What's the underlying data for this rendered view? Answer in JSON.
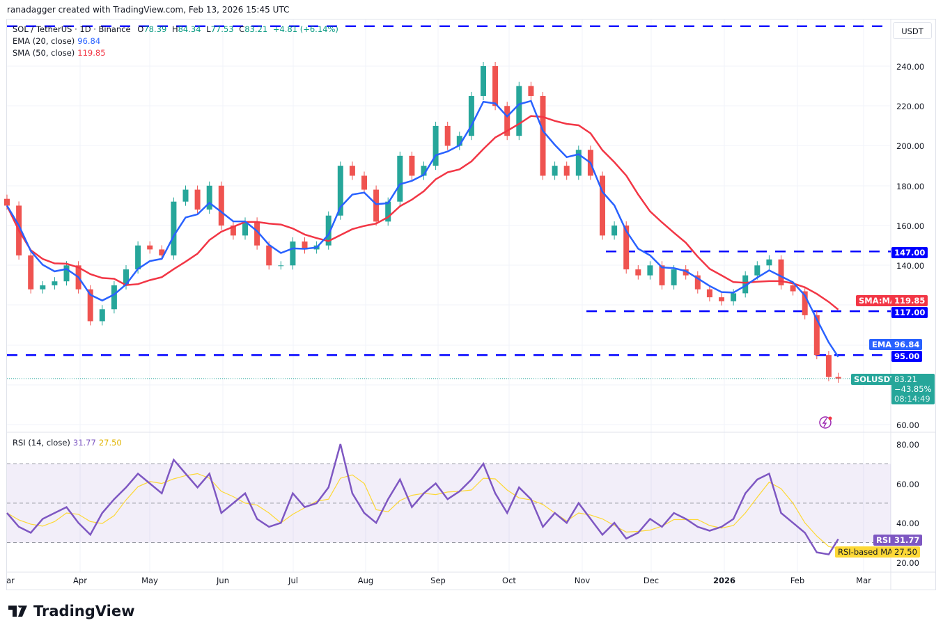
{
  "credit": "ranadagger created with TradingView.com, Feb 13, 2026 15:45 UTC",
  "legend": {
    "symbol": "SOL / TetherUS · 1D · Binance",
    "o_label": "O",
    "o": "78.39",
    "h_label": "H",
    "h": "84.34",
    "l_label": "L",
    "l": "77.53",
    "c_label": "C",
    "c": "83.21",
    "change": "+4.81 (+6.14%)",
    "ema_label": "EMA (20, close)",
    "ema_value": "96.84",
    "sma_label": "SMA (50, close)",
    "sma_value": "119.85",
    "rsi_label": "RSI (14, close)",
    "rsi_value": "31.77",
    "rsi_ma_value": "27.50"
  },
  "currency": "USDT",
  "price_axis": [
    "240.00",
    "220.00",
    "200.00",
    "180.00",
    "160.00",
    "140.00",
    "60.00"
  ],
  "rsi_axis": [
    "80.00",
    "60.00",
    "40.00",
    "20.00"
  ],
  "time_axis": [
    "Mar",
    "Apr",
    "May",
    "Jun",
    "Jul",
    "Aug",
    "Sep",
    "Oct",
    "Nov",
    "Dec",
    "2026",
    "Feb",
    "Mar"
  ],
  "badges": {
    "level_147": "147.00",
    "sma_tag": "SMA:MA",
    "sma_value": "119.85",
    "level_117": "117.00",
    "ema_tag": "EMA",
    "ema_value": "96.84",
    "level_95": "95.00",
    "symbol_tag": "SOLUSDT",
    "price": "83.21",
    "change_pct": "−43.85%",
    "countdown": "08:14:49",
    "rsi_tag": "RSI",
    "rsi_value": "31.77",
    "rsi_ma_tag": "RSI-based MA",
    "rsi_ma_value": "27.50"
  },
  "brand": "TradingView",
  "colors": {
    "up": "#26a69a",
    "down": "#ef5350",
    "ema": "#2962ff",
    "sma": "#f23645",
    "levels": "#0000ff",
    "rsi": "#7e57c2",
    "rsi_ma": "#fdd835",
    "rsi_band": "#7e57c2"
  },
  "chart_data": {
    "type": "candlestick",
    "symbol": "SOL / TetherUS",
    "timeframe": "1D",
    "ylim": [
      55,
      265
    ],
    "horizontal_levels": [
      260,
      147,
      117,
      95
    ],
    "dates": [
      "2025-03-01",
      "2025-03-06",
      "2025-03-11",
      "2025-03-16",
      "2025-03-21",
      "2025-03-26",
      "2025-03-31",
      "2025-04-05",
      "2025-04-10",
      "2025-04-15",
      "2025-04-20",
      "2025-04-25",
      "2025-04-30",
      "2025-05-05",
      "2025-05-10",
      "2025-05-15",
      "2025-05-20",
      "2025-05-25",
      "2025-05-30",
      "2025-06-04",
      "2025-06-09",
      "2025-06-14",
      "2025-06-19",
      "2025-06-24",
      "2025-06-29",
      "2025-07-04",
      "2025-07-09",
      "2025-07-14",
      "2025-07-19",
      "2025-07-24",
      "2025-07-29",
      "2025-08-03",
      "2025-08-08",
      "2025-08-13",
      "2025-08-18",
      "2025-08-23",
      "2025-08-28",
      "2025-09-02",
      "2025-09-07",
      "2025-09-12",
      "2025-09-17",
      "2025-09-22",
      "2025-09-27",
      "2025-10-02",
      "2025-10-07",
      "2025-10-12",
      "2025-10-17",
      "2025-10-22",
      "2025-10-27",
      "2025-11-01",
      "2025-11-06",
      "2025-11-11",
      "2025-11-16",
      "2025-11-21",
      "2025-11-26",
      "2025-12-01",
      "2025-12-06",
      "2025-12-11",
      "2025-12-16",
      "2025-12-21",
      "2025-12-26",
      "2025-12-31",
      "2026-01-05",
      "2026-01-10",
      "2026-01-15",
      "2026-01-20",
      "2026-01-25",
      "2026-01-30",
      "2026-02-04",
      "2026-02-09",
      "2026-02-13"
    ],
    "close": [
      170,
      145,
      128,
      130,
      132,
      140,
      128,
      112,
      118,
      130,
      138,
      150,
      148,
      145,
      172,
      178,
      168,
      180,
      160,
      155,
      162,
      150,
      140,
      140,
      152,
      148,
      150,
      165,
      190,
      185,
      178,
      162,
      172,
      195,
      185,
      190,
      210,
      200,
      205,
      225,
      240,
      220,
      205,
      230,
      225,
      185,
      190,
      185,
      198,
      185,
      155,
      160,
      138,
      135,
      140,
      130,
      138,
      135,
      128,
      124,
      122,
      126,
      135,
      140,
      143,
      130,
      127,
      115,
      95,
      84,
      83.21
    ],
    "rsi": [
      45,
      38,
      35,
      42,
      45,
      48,
      40,
      34,
      45,
      52,
      58,
      65,
      60,
      55,
      72,
      65,
      58,
      65,
      45,
      50,
      55,
      42,
      38,
      40,
      55,
      48,
      50,
      58,
      80,
      55,
      45,
      40,
      52,
      62,
      48,
      55,
      60,
      52,
      56,
      62,
      70,
      55,
      45,
      58,
      52,
      38,
      45,
      40,
      50,
      42,
      34,
      40,
      32,
      35,
      42,
      38,
      45,
      42,
      38,
      36,
      38,
      42,
      55,
      62,
      65,
      45,
      40,
      35,
      25,
      24,
      31.77
    ],
    "rsi_ylim": [
      15,
      85
    ],
    "rsi_bands": [
      30,
      50,
      70
    ]
  }
}
